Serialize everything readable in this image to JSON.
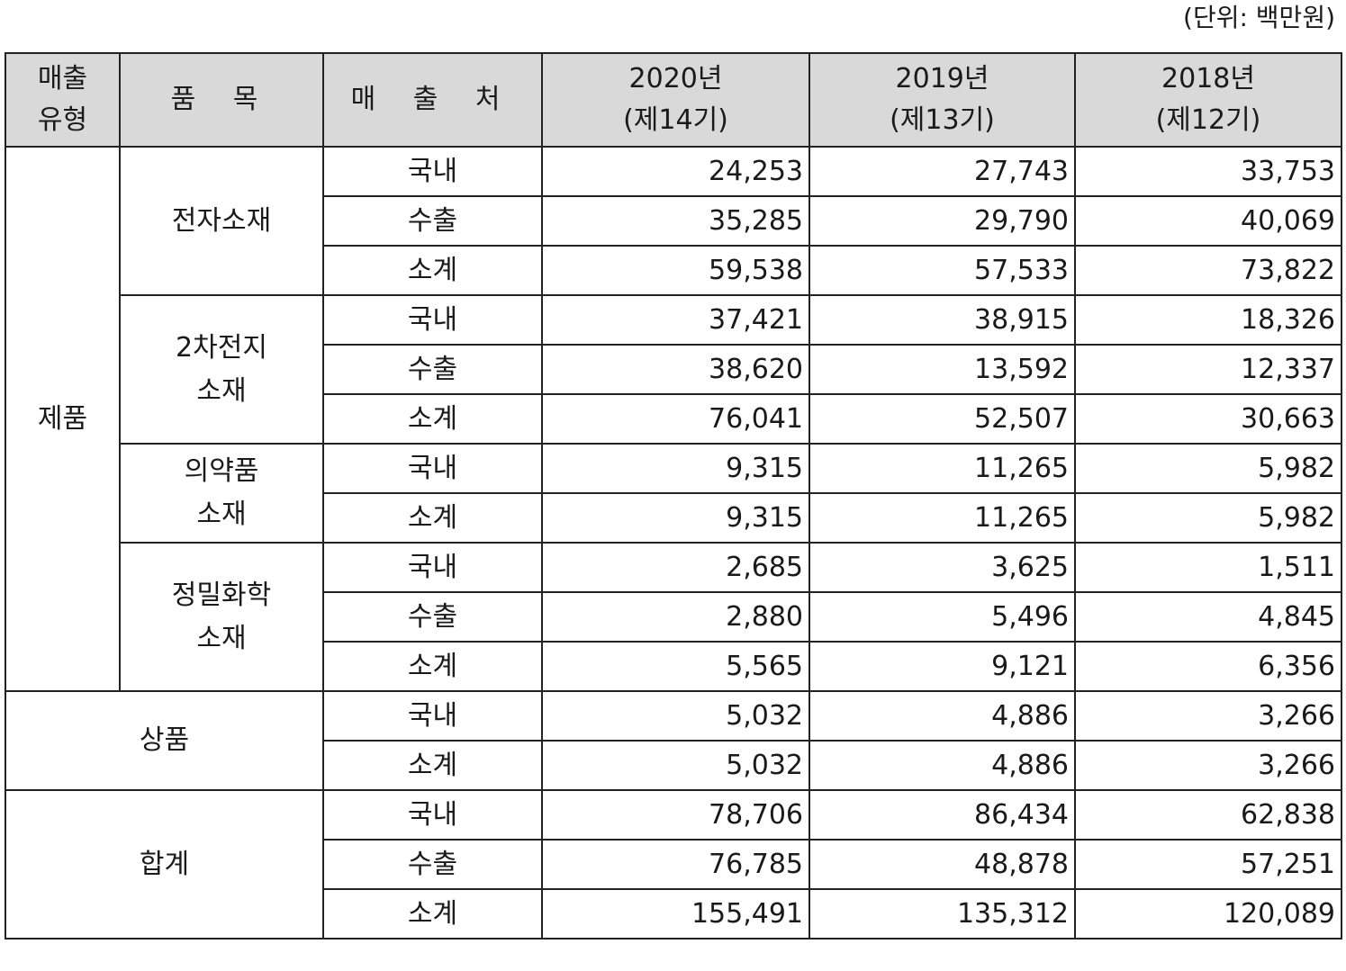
{
  "unit_note": "(단위: 백만원)",
  "headers": {
    "type_line1": "매출",
    "type_line2": "유형",
    "item": "품 목",
    "channel": "매 출 처",
    "y2020_line1": "2020년",
    "y2020_line2": "(제14기)",
    "y2019_line1": "2019년",
    "y2019_line2": "(제13기)",
    "y2018_line1": "2018년",
    "y2018_line2": "(제12기)"
  },
  "groups": {
    "product": "제품",
    "merch": "상품",
    "total": "합계"
  },
  "items": {
    "electronic": "전자소재",
    "battery_line1": "2차전지",
    "battery_line2": "소재",
    "pharma_line1": "의약품",
    "pharma_line2": "소재",
    "fine_line1": "정밀화학",
    "fine_line2": "소재"
  },
  "rows": [
    {
      "channel": "국내",
      "y2020": "24,253",
      "y2019": "27,743",
      "y2018": "33,753"
    },
    {
      "channel": "수출",
      "y2020": "35,285",
      "y2019": "29,790",
      "y2018": "40,069"
    },
    {
      "channel": "소계",
      "y2020": "59,538",
      "y2019": "57,533",
      "y2018": "73,822"
    },
    {
      "channel": "국내",
      "y2020": "37,421",
      "y2019": "38,915",
      "y2018": "18,326"
    },
    {
      "channel": "수출",
      "y2020": "38,620",
      "y2019": "13,592",
      "y2018": "12,337"
    },
    {
      "channel": "소계",
      "y2020": "76,041",
      "y2019": "52,507",
      "y2018": "30,663"
    },
    {
      "channel": "국내",
      "y2020": "9,315",
      "y2019": "11,265",
      "y2018": "5,982"
    },
    {
      "channel": "소계",
      "y2020": "9,315",
      "y2019": "11,265",
      "y2018": "5,982"
    },
    {
      "channel": "국내",
      "y2020": "2,685",
      "y2019": "3,625",
      "y2018": "1,511"
    },
    {
      "channel": "수출",
      "y2020": "2,880",
      "y2019": "5,496",
      "y2018": "4,845"
    },
    {
      "channel": "소계",
      "y2020": "5,565",
      "y2019": "9,121",
      "y2018": "6,356"
    },
    {
      "channel": "국내",
      "y2020": "5,032",
      "y2019": "4,886",
      "y2018": "3,266"
    },
    {
      "channel": "소계",
      "y2020": "5,032",
      "y2019": "4,886",
      "y2018": "3,266"
    },
    {
      "channel": "국내",
      "y2020": "78,706",
      "y2019": "86,434",
      "y2018": "62,838"
    },
    {
      "channel": "수출",
      "y2020": "76,785",
      "y2019": "48,878",
      "y2018": "57,251"
    },
    {
      "channel": "소계",
      "y2020": "155,491",
      "y2019": "135,312",
      "y2018": "120,089"
    }
  ],
  "colors": {
    "header_bg": "#d9d9d9",
    "border": "#222222",
    "text": "#1a1a1a"
  }
}
